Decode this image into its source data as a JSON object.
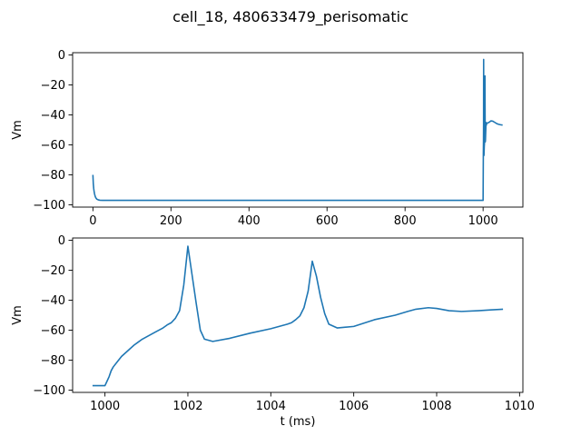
{
  "suptitle": "cell_18, 480633479_perisomatic",
  "colors": {
    "trace": "#1f77b4"
  },
  "chart_data": [
    {
      "type": "line",
      "title": "",
      "xlabel": "",
      "ylabel": "Vm",
      "xlim": [
        -52,
        1102
      ],
      "ylim": [
        -101.5,
        1.5
      ],
      "xticks": [
        0,
        200,
        400,
        600,
        800,
        1000
      ],
      "yticks": [
        -100,
        -80,
        -60,
        -40,
        -20,
        0
      ],
      "grid": false,
      "series": [
        {
          "x": [
            0,
            0.5,
            1,
            2,
            3,
            4,
            6,
            8,
            10,
            14,
            18,
            25,
            40,
            100,
            300,
            500,
            700,
            900,
            999.7,
            1000,
            1000.6,
            1001,
            1001.2,
            1001.4,
            1001.8,
            1002.2,
            1002.6,
            1003,
            1003.5,
            1004,
            1004.4,
            1004.8,
            1005.2,
            1005.6,
            1006,
            1007,
            1007.4,
            1008,
            1009,
            1010,
            1015,
            1020,
            1025,
            1030,
            1035,
            1040,
            1045,
            1050
          ],
          "y": [
            -80,
            -83,
            -86,
            -89,
            -91,
            -92.5,
            -94.5,
            -95.5,
            -96.2,
            -96.7,
            -96.9,
            -97,
            -97,
            -97,
            -97,
            -97,
            -97,
            -97,
            -97,
            -97,
            -66,
            -57,
            -46,
            -3,
            -60,
            -67,
            -64,
            -61,
            -59,
            -56,
            -50,
            -14,
            -45,
            -58,
            -57,
            -49,
            -45,
            -47,
            -46,
            -45.5,
            -45,
            -44,
            -44.2,
            -45,
            -45.8,
            -46.3,
            -46.6,
            -46.8
          ]
        }
      ]
    },
    {
      "type": "line",
      "title": "",
      "xlabel": "t (ms)",
      "ylabel": "Vm",
      "xlim": [
        999.22,
        1010.08
      ],
      "ylim": [
        -101.5,
        1.5
      ],
      "xticks": [
        1000,
        1002,
        1004,
        1006,
        1008,
        1010
      ],
      "yticks": [
        -100,
        -80,
        -60,
        -40,
        -20,
        0
      ],
      "grid": false,
      "series": [
        {
          "x": [
            999.7,
            1000.0,
            1000.05,
            1000.1,
            1000.15,
            1000.2,
            1000.3,
            1000.4,
            1000.5,
            1000.6,
            1000.7,
            1000.8,
            1000.9,
            1001.0,
            1001.2,
            1001.4,
            1001.5,
            1001.6,
            1001.7,
            1001.8,
            1001.9,
            1002.0,
            1002.1,
            1002.2,
            1002.3,
            1002.4,
            1002.6,
            1003.0,
            1003.5,
            1004.0,
            1004.2,
            1004.4,
            1004.5,
            1004.6,
            1004.7,
            1004.8,
            1004.9,
            1005.0,
            1005.1,
            1005.2,
            1005.3,
            1005.4,
            1005.6,
            1006.0,
            1006.5,
            1007.0,
            1007.3,
            1007.5,
            1007.8,
            1008.0,
            1008.3,
            1008.6,
            1009.0,
            1009.3,
            1009.6
          ],
          "y": [
            -97,
            -97,
            -94,
            -91,
            -87,
            -84.5,
            -81,
            -77.5,
            -75,
            -72.5,
            -70,
            -68,
            -66,
            -64.5,
            -61.5,
            -58.5,
            -56.5,
            -55,
            -52,
            -47,
            -30,
            -4,
            -23,
            -42,
            -60,
            -66,
            -67.5,
            -65.5,
            -62,
            -59,
            -57.5,
            -56,
            -55,
            -53,
            -50.5,
            -45,
            -34,
            -14,
            -24,
            -38,
            -49,
            -56,
            -58.5,
            -57.5,
            -53,
            -50,
            -47.5,
            -46,
            -45,
            -45.5,
            -47,
            -47.5,
            -47,
            -46.5,
            -46
          ]
        }
      ]
    }
  ]
}
